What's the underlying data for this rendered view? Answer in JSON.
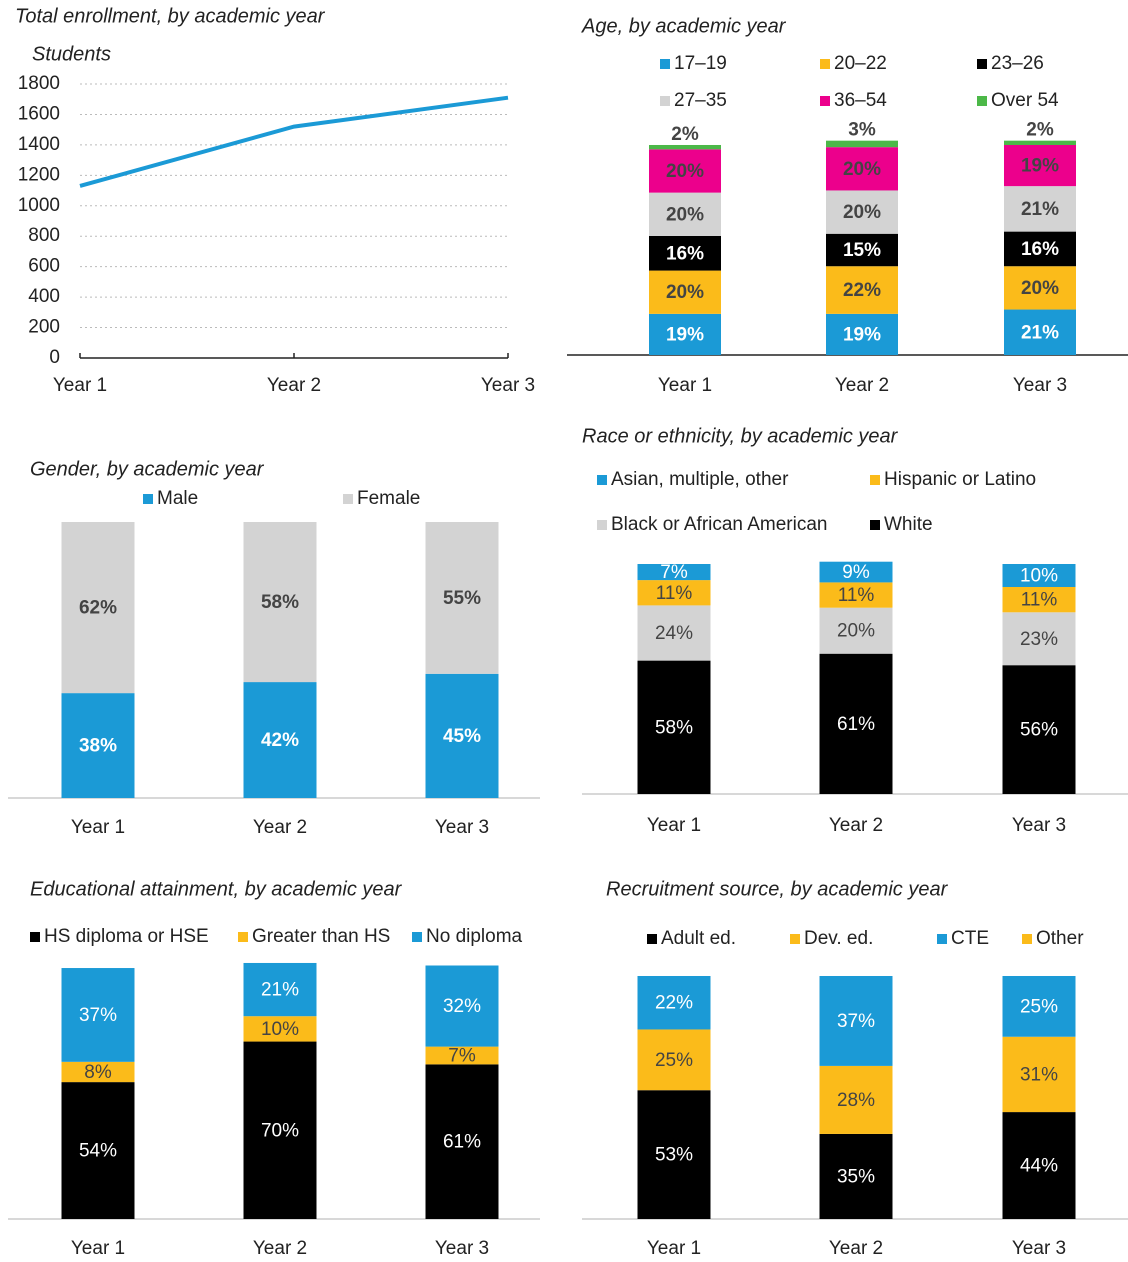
{
  "chart_data": [
    {
      "type": "line",
      "title": "Total enrollment, by academic year",
      "y_label": "Students",
      "categories": [
        "Year 1",
        "Year 2",
        "Year 3"
      ],
      "values": [
        1130,
        1520,
        1710
      ],
      "color": "#1b9ad6",
      "ylim": [
        0,
        1800
      ],
      "yticks": [
        0,
        200,
        400,
        600,
        800,
        1000,
        1200,
        1400,
        1600,
        1800
      ],
      "grid": true
    },
    {
      "type": "stacked_bar",
      "title": "Age, by academic year",
      "categories": [
        "Year 1",
        "Year 2",
        "Year 3"
      ],
      "ylim": [
        0,
        100
      ],
      "series": [
        {
          "name": "17–19",
          "color": "#1b9ad6",
          "label_color": "#ffffff",
          "values": [
            19,
            19,
            21
          ],
          "value_labels": [
            "19%",
            "19%",
            "21%"
          ]
        },
        {
          "name": "20–22",
          "color": "#fbbb1a",
          "label_color": "#444444",
          "values": [
            20,
            22,
            20
          ],
          "value_labels": [
            "20%",
            "22%",
            "20%"
          ]
        },
        {
          "name": "23–26",
          "color": "#000000",
          "label_color": "#ffffff",
          "values": [
            16,
            15,
            16
          ],
          "value_labels": [
            "16%",
            "15%",
            "16%"
          ]
        },
        {
          "name": "27–35",
          "color": "#d3d3d3",
          "label_color": "#444444",
          "values": [
            20,
            20,
            21
          ],
          "value_labels": [
            "20%",
            "20%",
            "21%"
          ]
        },
        {
          "name": "36–54",
          "color": "#ec008c",
          "label_color": "#444444",
          "values": [
            20,
            20,
            19
          ],
          "value_labels": [
            "20%",
            "20%",
            "19%"
          ]
        },
        {
          "name": "Over 54",
          "color": "#4cb848",
          "label_color": "#444444",
          "values": [
            2,
            3,
            2
          ],
          "value_labels": [
            "2%",
            "3%",
            "2%"
          ]
        }
      ]
    },
    {
      "type": "stacked_bar",
      "title": "Gender, by academic year",
      "categories": [
        "Year 1",
        "Year 2",
        "Year 3"
      ],
      "ylim": [
        0,
        100
      ],
      "series": [
        {
          "name": "Male",
          "color": "#1b9ad6",
          "label_color": "#ffffff",
          "values": [
            38,
            42,
            45
          ],
          "value_labels": [
            "38%",
            "42%",
            "45%"
          ]
        },
        {
          "name": "Female",
          "color": "#d3d3d3",
          "label_color": "#444444",
          "values": [
            62,
            58,
            55
          ],
          "value_labels": [
            "62%",
            "58%",
            "55%"
          ]
        }
      ]
    },
    {
      "type": "stacked_bar",
      "title": "Race or ethnicity, by academic year",
      "categories": [
        "Year 1",
        "Year 2",
        "Year 3"
      ],
      "ylim": [
        0,
        100
      ],
      "series": [
        {
          "name": "Asian, multiple, other",
          "color": "#1b9ad6",
          "label_color": "#ffffff",
          "values": [
            7,
            9,
            10
          ],
          "value_labels": [
            "7%",
            "9%",
            "10%"
          ]
        },
        {
          "name": "Hispanic or Latino",
          "color": "#fbbb1a",
          "label_color": "#444444",
          "values": [
            11,
            11,
            11
          ],
          "value_labels": [
            "11%",
            "11%",
            "11%"
          ]
        },
        {
          "name": "Black or African American",
          "color": "#d3d3d3",
          "label_color": "#444444",
          "values": [
            24,
            20,
            23
          ],
          "value_labels": [
            "24%",
            "20%",
            "23%"
          ]
        },
        {
          "name": "White",
          "color": "#000000",
          "label_color": "#ffffff",
          "values": [
            58,
            61,
            56
          ],
          "value_labels": [
            "58%",
            "61%",
            "56%"
          ]
        }
      ]
    },
    {
      "type": "stacked_bar",
      "title": "Educational attainment, by academic year",
      "categories": [
        "Year 1",
        "Year 2",
        "Year 3"
      ],
      "ylim": [
        0,
        100
      ],
      "series": [
        {
          "name": "HS diploma or HSE",
          "color": "#000000",
          "label_color": "#ffffff",
          "values": [
            54,
            70,
            61
          ],
          "value_labels": [
            "54%",
            "70%",
            "61%"
          ]
        },
        {
          "name": "Greater than HS",
          "color": "#fbbb1a",
          "label_color": "#444444",
          "values": [
            8,
            10,
            7
          ],
          "value_labels": [
            "8%",
            "10%",
            "7%"
          ]
        },
        {
          "name": "No diploma",
          "color": "#1b9ad6",
          "label_color": "#ffffff",
          "values": [
            37,
            21,
            32
          ],
          "value_labels": [
            "37%",
            "21%",
            "32%"
          ]
        }
      ]
    },
    {
      "type": "stacked_bar",
      "title": "Recruitment source, by academic year",
      "categories": [
        "Year 1",
        "Year 2",
        "Year 3"
      ],
      "ylim": [
        0,
        100
      ],
      "series": [
        {
          "name": "Adult ed.",
          "color": "#000000",
          "label_color": "#ffffff",
          "values": [
            53,
            35,
            44
          ],
          "value_labels": [
            "53%",
            "35%",
            "44%"
          ]
        },
        {
          "name": "Dev. ed.",
          "color": "#fbbb1a",
          "label_color": "#444444",
          "values": [
            25,
            28,
            31
          ],
          "value_labels": [
            "25%",
            "28%",
            "31%"
          ]
        },
        {
          "name": "CTE",
          "color": "#1b9ad6",
          "label_color": "#ffffff",
          "values": [
            22,
            37,
            25
          ],
          "value_labels": [
            "22%",
            "37%",
            "25%"
          ]
        },
        {
          "name": "Other",
          "color": "#fbbb1a",
          "label_color": "#444444",
          "values": [
            null,
            null,
            null
          ]
        }
      ]
    }
  ]
}
